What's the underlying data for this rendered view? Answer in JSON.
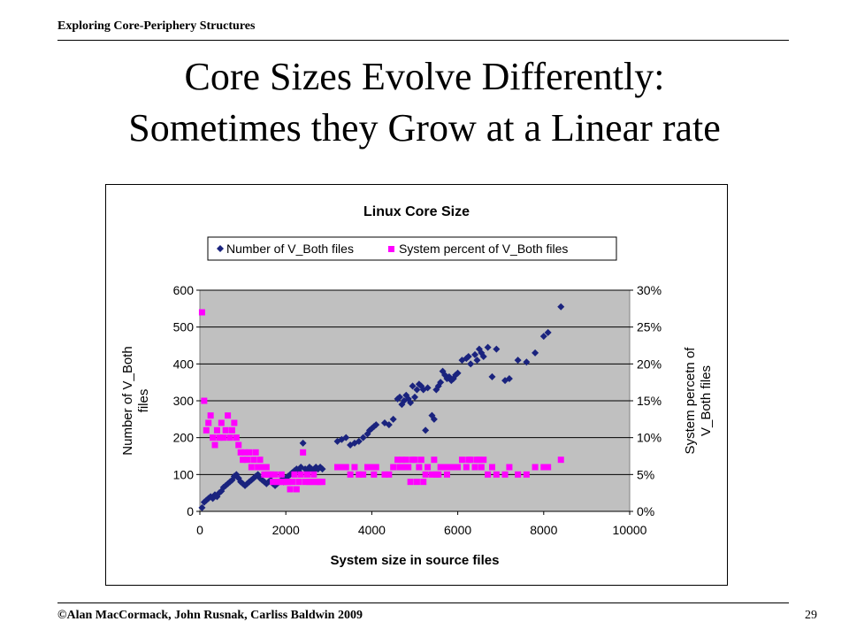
{
  "header": {
    "text": "Exploring Core-Periphery Structures"
  },
  "slide": {
    "title_line1": "Core Sizes Evolve Differently:",
    "title_line2": "Sometimes they Grow at a Linear rate"
  },
  "footer": {
    "copyright": "©Alan MacCormack, John Rusnak, Carliss Baldwin 2009",
    "page_number": "29"
  },
  "chart_data": {
    "type": "scatter",
    "title": "Linux Core Size",
    "xlabel": "System size in source files",
    "ylabel": "Number of V_Both files",
    "y2label": "System percetn of V_Both files",
    "xlim": [
      0,
      10000
    ],
    "ylim": [
      0,
      600
    ],
    "y2lim": [
      0,
      0.3
    ],
    "xticks": [
      0,
      2000,
      4000,
      6000,
      8000,
      10000
    ],
    "yticks": [
      0,
      100,
      200,
      300,
      400,
      500,
      600
    ],
    "y2ticks": [
      "0%",
      "5%",
      "10%",
      "15%",
      "20%",
      "25%",
      "30%"
    ],
    "y2tick_values": [
      0,
      0.05,
      0.1,
      0.15,
      0.2,
      0.25,
      0.3
    ],
    "plot_background": "#c0c0c0",
    "grid": true,
    "legend_position": "top",
    "series": [
      {
        "name": "Number of V_Both files",
        "axis": "left",
        "marker": "diamond",
        "color": "#1a237e",
        "x": [
          50,
          100,
          150,
          200,
          250,
          300,
          350,
          400,
          450,
          500,
          550,
          600,
          650,
          700,
          750,
          800,
          850,
          900,
          950,
          1000,
          1050,
          1100,
          1150,
          1200,
          1250,
          1300,
          1350,
          1400,
          1450,
          1500,
          1550,
          1600,
          1650,
          1700,
          1750,
          1800,
          1850,
          1900,
          1950,
          2000,
          2050,
          2100,
          2150,
          2200,
          2250,
          2300,
          2350,
          2400,
          2450,
          2500,
          2550,
          2600,
          2650,
          2700,
          2750,
          2800,
          2850,
          3200,
          3300,
          3400,
          3500,
          3600,
          3700,
          3800,
          3900,
          3950,
          4000,
          4050,
          4100,
          4300,
          4400,
          4500,
          4600,
          4650,
          4700,
          4750,
          4800,
          4850,
          4900,
          4950,
          5000,
          5050,
          5100,
          5150,
          5200,
          5250,
          5300,
          5400,
          5450,
          5500,
          5550,
          5600,
          5650,
          5700,
          5750,
          5800,
          5850,
          5900,
          5950,
          6000,
          6100,
          6200,
          6250,
          6300,
          6400,
          6450,
          6500,
          6550,
          6600,
          6700,
          6800,
          6900,
          7100,
          7200,
          7400,
          7600,
          7800,
          8000,
          8100,
          8400
        ],
        "y": [
          10,
          25,
          30,
          35,
          40,
          35,
          45,
          40,
          50,
          55,
          65,
          70,
          75,
          80,
          85,
          95,
          100,
          90,
          80,
          75,
          70,
          75,
          80,
          85,
          90,
          95,
          100,
          90,
          85,
          80,
          75,
          80,
          85,
          75,
          70,
          75,
          80,
          85,
          80,
          90,
          95,
          100,
          105,
          110,
          115,
          110,
          120,
          185,
          115,
          110,
          120,
          115,
          110,
          120,
          115,
          120,
          115,
          190,
          195,
          200,
          180,
          185,
          190,
          200,
          210,
          220,
          225,
          230,
          235,
          240,
          235,
          250,
          305,
          310,
          290,
          300,
          315,
          305,
          295,
          340,
          310,
          330,
          345,
          340,
          330,
          220,
          335,
          260,
          250,
          330,
          340,
          350,
          380,
          370,
          360,
          365,
          355,
          360,
          370,
          375,
          410,
          415,
          420,
          400,
          425,
          410,
          440,
          430,
          420,
          445,
          365,
          440,
          355,
          360,
          410,
          405,
          430,
          475,
          485,
          555
        ]
      },
      {
        "name": "System percent of V_Both files",
        "axis": "right",
        "marker": "square",
        "color": "#ff00ff",
        "x": [
          50,
          100,
          150,
          200,
          250,
          300,
          350,
          400,
          450,
          500,
          550,
          600,
          650,
          700,
          750,
          800,
          850,
          900,
          950,
          1000,
          1050,
          1100,
          1150,
          1200,
          1250,
          1300,
          1350,
          1400,
          1450,
          1500,
          1550,
          1600,
          1650,
          1700,
          1750,
          1800,
          1850,
          1900,
          1950,
          2000,
          2050,
          2100,
          2150,
          2200,
          2250,
          2300,
          2350,
          2400,
          2450,
          2500,
          2550,
          2600,
          2650,
          2700,
          2750,
          2800,
          2850,
          3200,
          3300,
          3400,
          3500,
          3600,
          3700,
          3800,
          3900,
          3950,
          4000,
          4050,
          4100,
          4300,
          4400,
          4500,
          4600,
          4650,
          4700,
          4750,
          4800,
          4850,
          4900,
          4950,
          5000,
          5050,
          5100,
          5150,
          5200,
          5250,
          5300,
          5400,
          5450,
          5500,
          5550,
          5600,
          5650,
          5700,
          5750,
          5800,
          5850,
          5900,
          5950,
          6000,
          6100,
          6200,
          6250,
          6300,
          6400,
          6450,
          6500,
          6550,
          6600,
          6700,
          6800,
          6900,
          7100,
          7200,
          7400,
          7600,
          7800,
          8000,
          8100,
          8400
        ],
        "y": [
          0.27,
          0.15,
          0.11,
          0.12,
          0.13,
          0.1,
          0.09,
          0.11,
          0.1,
          0.12,
          0.1,
          0.11,
          0.13,
          0.1,
          0.11,
          0.12,
          0.1,
          0.09,
          0.08,
          0.07,
          0.08,
          0.07,
          0.08,
          0.06,
          0.07,
          0.08,
          0.06,
          0.07,
          0.06,
          0.05,
          0.06,
          0.05,
          0.05,
          0.04,
          0.05,
          0.04,
          0.04,
          0.05,
          0.04,
          0.04,
          0.04,
          0.03,
          0.04,
          0.05,
          0.03,
          0.04,
          0.05,
          0.08,
          0.04,
          0.05,
          0.04,
          0.04,
          0.05,
          0.04,
          0.04,
          0.04,
          0.04,
          0.06,
          0.06,
          0.06,
          0.05,
          0.06,
          0.05,
          0.05,
          0.06,
          0.06,
          0.06,
          0.05,
          0.06,
          0.05,
          0.05,
          0.06,
          0.07,
          0.06,
          0.07,
          0.06,
          0.07,
          0.06,
          0.04,
          0.07,
          0.07,
          0.04,
          0.06,
          0.07,
          0.04,
          0.05,
          0.06,
          0.05,
          0.07,
          0.05,
          0.05,
          0.06,
          0.06,
          0.06,
          0.05,
          0.06,
          0.06,
          0.06,
          0.06,
          0.06,
          0.07,
          0.06,
          0.07,
          0.07,
          0.06,
          0.07,
          0.07,
          0.06,
          0.07,
          0.05,
          0.06,
          0.05,
          0.05,
          0.06,
          0.05,
          0.05,
          0.06,
          0.06,
          0.06,
          0.07
        ]
      }
    ]
  }
}
